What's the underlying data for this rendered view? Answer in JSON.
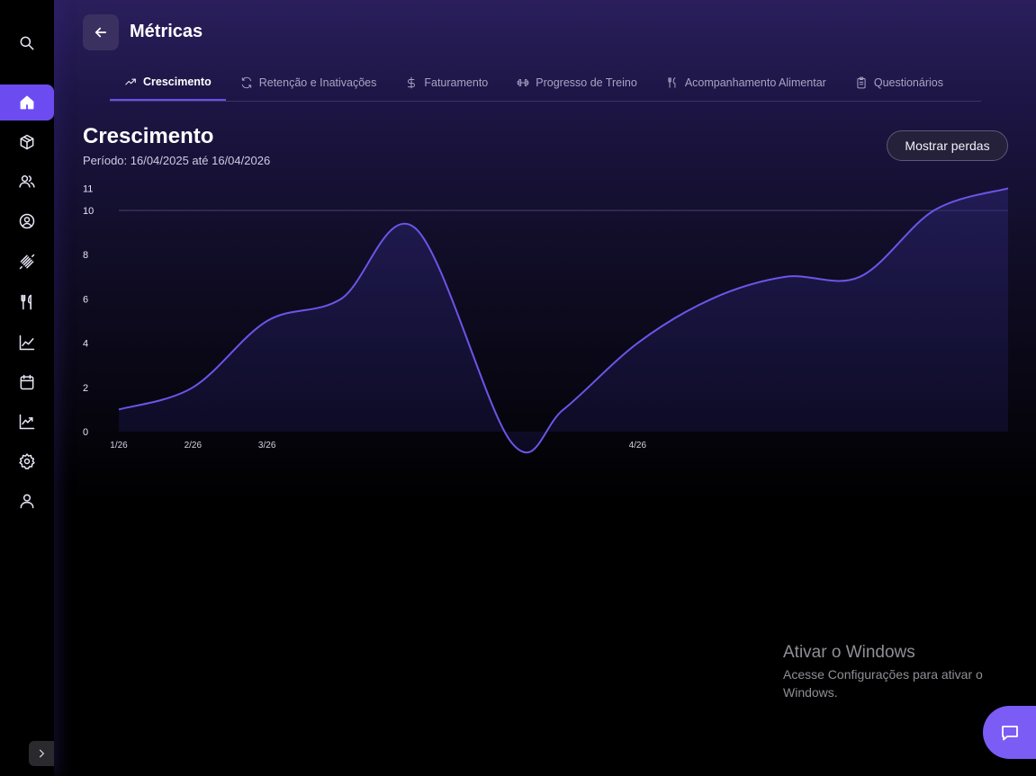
{
  "header": {
    "title": "Métricas"
  },
  "sidebar": {
    "items": [
      {
        "icon": "search-icon"
      },
      {
        "icon": "home-icon",
        "active": true
      },
      {
        "icon": "package-icon"
      },
      {
        "icon": "users-icon"
      },
      {
        "icon": "user-circle-icon"
      },
      {
        "icon": "dumbbell-icon"
      },
      {
        "icon": "utensils-icon"
      },
      {
        "icon": "line-chart-icon"
      },
      {
        "icon": "calendar-icon"
      },
      {
        "icon": "trending-up-icon"
      },
      {
        "icon": "settings-icon"
      },
      {
        "icon": "user-icon"
      }
    ]
  },
  "tabs": [
    {
      "label": "Crescimento",
      "icon": "trending-up-icon",
      "active": true
    },
    {
      "label": "Retenção e Inativações",
      "icon": "refresh-icon"
    },
    {
      "label": "Faturamento",
      "icon": "dollar-icon"
    },
    {
      "label": "Progresso de Treino",
      "icon": "dumbbell-icon"
    },
    {
      "label": "Acompanhamento Alimentar",
      "icon": "utensils-icon"
    },
    {
      "label": "Questionários",
      "icon": "clipboard-icon"
    }
  ],
  "section": {
    "title": "Crescimento",
    "period": "Período: 16/04/2025 até 16/04/2026",
    "show_losses_label": "Mostrar perdas"
  },
  "chart_data": {
    "type": "area",
    "title": "",
    "xlabel": "",
    "ylabel": "",
    "ylim": [
      0,
      11
    ],
    "y_ticks": [
      0,
      2,
      4,
      6,
      8,
      10,
      11
    ],
    "x_ticks": [
      {
        "label": "1/26",
        "x": 0
      },
      {
        "label": "2/26",
        "x": 1
      },
      {
        "label": "3/26",
        "x": 2
      },
      {
        "label": "4/26",
        "x": 7
      }
    ],
    "x_range": [
      0,
      12
    ],
    "grid": "horizontal line at 10",
    "series": [
      {
        "color": "#6b55e8",
        "points": [
          [
            0,
            1.0
          ],
          [
            1,
            2.0
          ],
          [
            2,
            5.0
          ],
          [
            3,
            6.0
          ],
          [
            4,
            9.2
          ],
          [
            5.3,
            -0.5
          ],
          [
            6,
            1.0
          ],
          [
            7,
            4.0
          ],
          [
            8,
            6.0
          ],
          [
            9,
            7.0
          ],
          [
            10,
            7.0
          ],
          [
            11,
            10.0
          ],
          [
            12,
            11.0
          ]
        ]
      }
    ]
  },
  "watermark": {
    "title": "Ativar o Windows",
    "subtitle": "Acesse Configurações para ativar o Windows."
  },
  "colors": {
    "accent": "#6c4cf0",
    "line": "#6b55e8"
  },
  "chat": {
    "icon": "chat-icon"
  }
}
